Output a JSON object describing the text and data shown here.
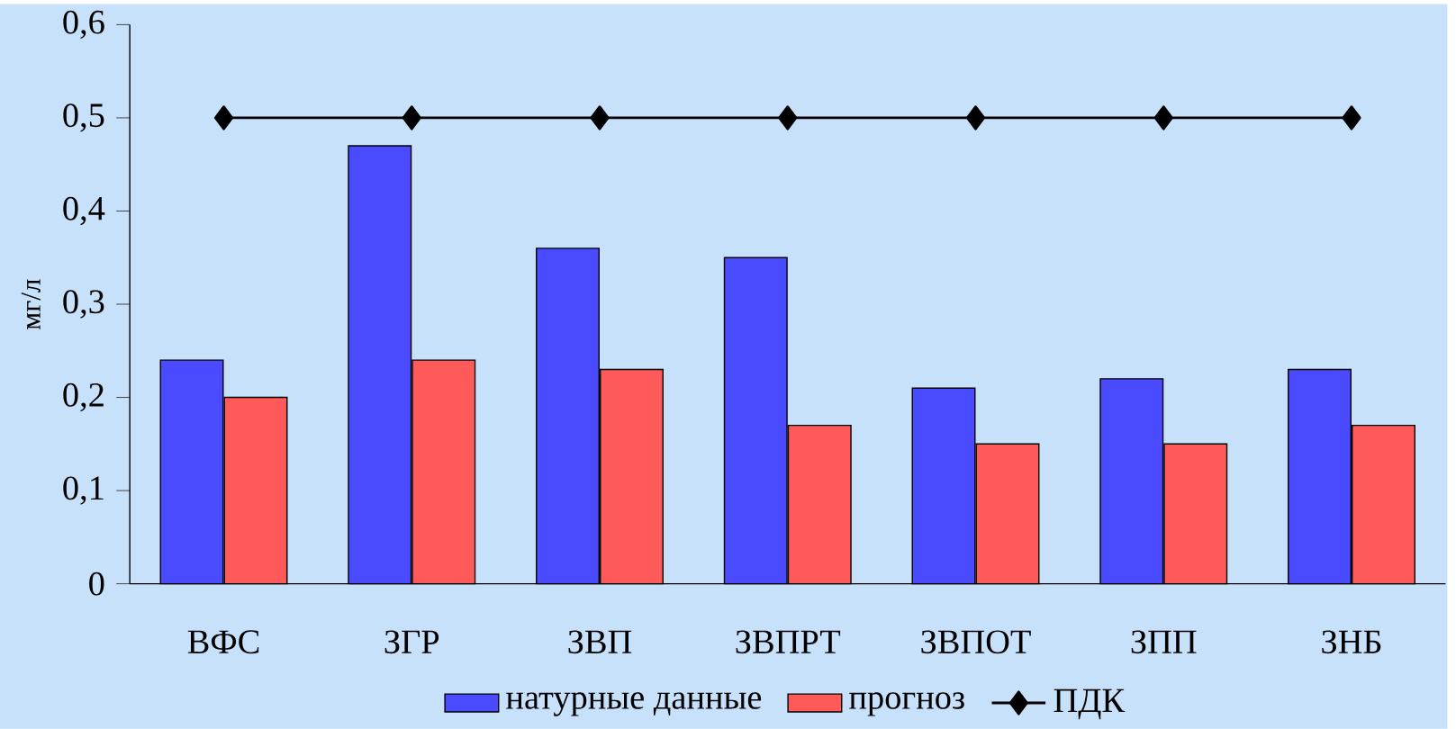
{
  "chart_data": {
    "type": "bar",
    "ylabel": "мг/л",
    "categories": [
      "ВФС",
      "ЗГР",
      "ЗВП",
      "ЗВПРТ",
      "ЗВПОТ",
      "ЗПП",
      "ЗНБ"
    ],
    "series": [
      {
        "name": "натурные данные",
        "color": "#4a4aff",
        "values": [
          0.24,
          0.47,
          0.36,
          0.35,
          0.21,
          0.22,
          0.23
        ]
      },
      {
        "name": "прогноз",
        "color": "#ff5a5a",
        "values": [
          0.2,
          0.24,
          0.23,
          0.17,
          0.15,
          0.15,
          0.17
        ]
      },
      {
        "name": "ПДК",
        "type": "line",
        "color": "#000000",
        "marker": "diamond",
        "values": [
          0.5,
          0.5,
          0.5,
          0.5,
          0.5,
          0.5,
          0.5
        ]
      }
    ],
    "ylim": [
      0,
      0.6
    ],
    "yticks": [
      0,
      {
        "value": 0.1,
        "label": "0,1"
      },
      {
        "value": 0.2,
        "label": "0,2"
      },
      {
        "value": 0.3,
        "label": "0,3"
      },
      {
        "value": 0.4,
        "label": "0,4"
      },
      {
        "value": 0.5,
        "label": "0,5"
      },
      {
        "value": 0.6,
        "label": "0,6"
      }
    ],
    "grid": false,
    "legend": "bottom"
  }
}
